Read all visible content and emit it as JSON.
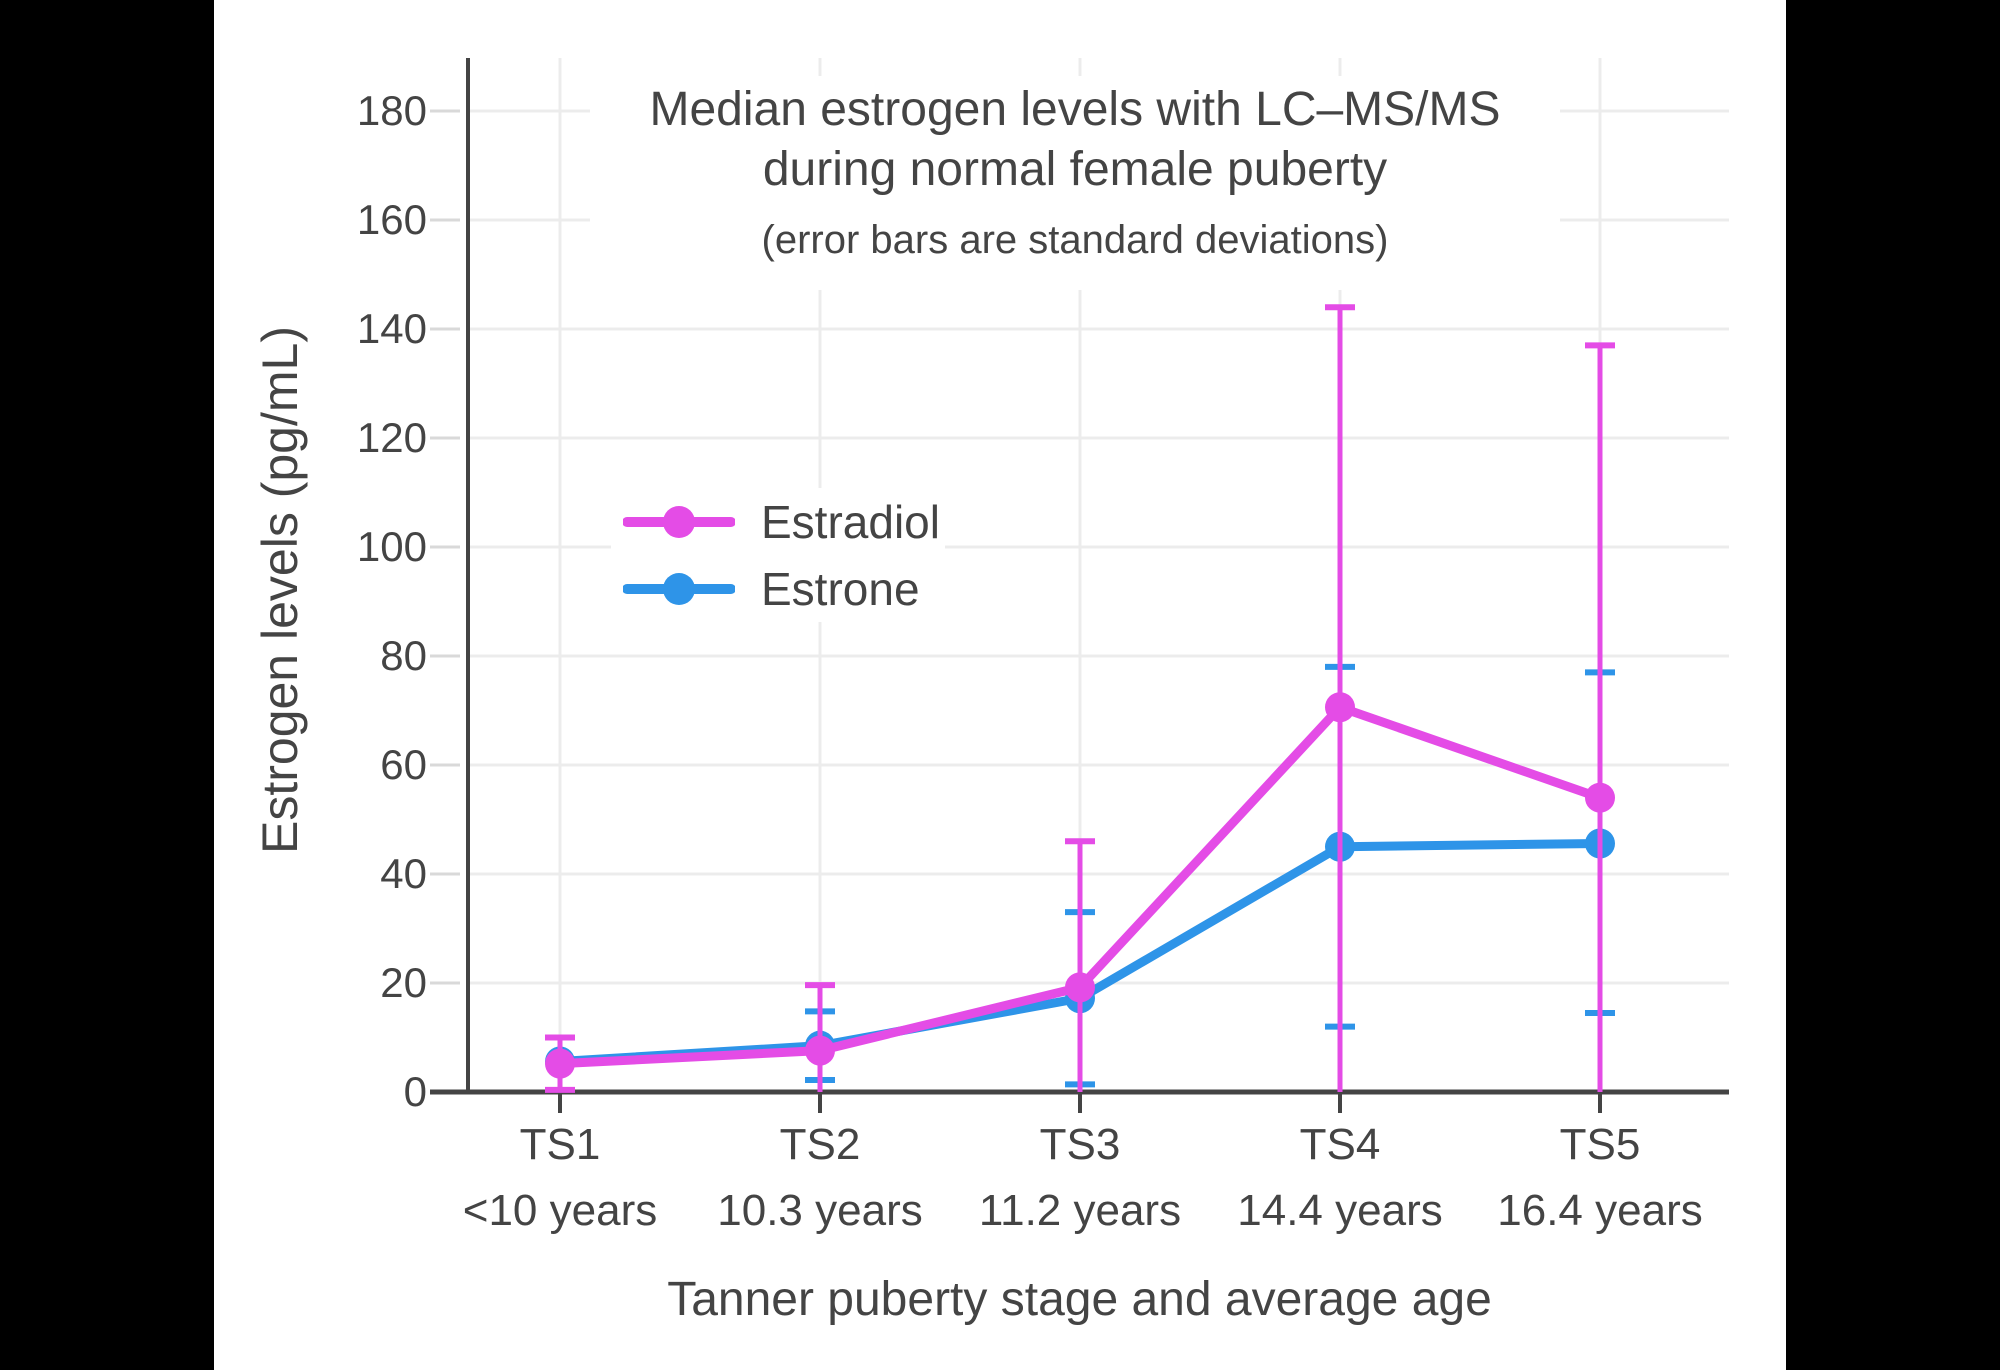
{
  "style": {
    "canvas_background": "#000000",
    "panel_background": "#FFFFFF",
    "text_color": "#444444",
    "axis_color": "#444444",
    "grid_color": "#ECECEC",
    "tick_color": "#D9D9D9"
  },
  "chart_data": {
    "type": "line",
    "title": "Median estrogen levels with LC–MS/MS",
    "title_line2": "during normal female puberty",
    "subtitle": "(error bars are standard deviations)",
    "xlabel": "Tanner puberty stage and average age",
    "ylabel": "Estrogen levels (pg/mL)",
    "categories": [
      "TS1",
      "TS2",
      "TS3",
      "TS4",
      "TS5"
    ],
    "category_sublabels": [
      "<10 years",
      "10.3 years",
      "11.2 years",
      "14.4 years",
      "16.4 years"
    ],
    "yticks": [
      0,
      20,
      40,
      60,
      80,
      100,
      120,
      140,
      160,
      180
    ],
    "ylim": [
      0,
      190
    ],
    "grid": true,
    "legend_position": "inside-upper-left",
    "series": [
      {
        "name": "Estradiol",
        "color": "#E44CE6",
        "values": [
          5.2,
          7.6,
          19.2,
          70.6,
          54
        ],
        "error_upper": [
          10,
          19.6,
          46,
          144,
          137
        ],
        "error_lower": [
          0.4,
          -4.4,
          -7.6,
          -2.8,
          -29
        ]
      },
      {
        "name": "Estrone",
        "color": "#2E94E8",
        "values": [
          5.6,
          8.5,
          17.2,
          45,
          45.6
        ],
        "error_upper": [
          null,
          14.8,
          33,
          78,
          77
        ],
        "error_lower": [
          null,
          2.2,
          1.4,
          12,
          14.5
        ]
      }
    ]
  }
}
